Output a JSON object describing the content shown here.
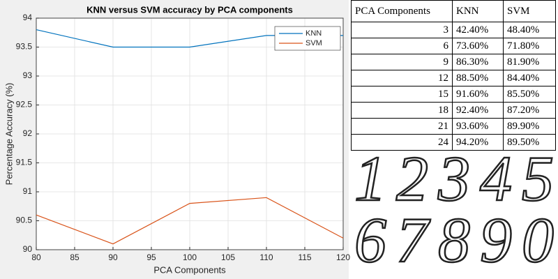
{
  "chart_data": {
    "type": "line",
    "title": "KNN versus SVM accuracy by PCA components",
    "x_label": "PCA Components",
    "y_label": "Percentage Accuracy (%)",
    "x": [
      80,
      90,
      100,
      110,
      120
    ],
    "series": [
      {
        "name": "KNN",
        "color": "#0072bd",
        "values": [
          93.8,
          93.5,
          93.5,
          93.7,
          93.7
        ]
      },
      {
        "name": "SVM",
        "color": "#d95319",
        "values": [
          90.6,
          90.1,
          90.8,
          90.9,
          90.2
        ]
      }
    ],
    "xlim": [
      80,
      120
    ],
    "xticks": [
      80,
      85,
      90,
      95,
      100,
      105,
      110,
      115,
      120
    ],
    "ylim": [
      90,
      94
    ],
    "yticks": [
      90,
      90.5,
      91,
      91.5,
      92,
      92.5,
      93,
      93.5,
      94
    ],
    "grid": true,
    "legend": "northeast"
  },
  "table": {
    "header": [
      "PCA Components",
      "KNN",
      "SVM"
    ],
    "rows": [
      [
        "3",
        "42.40%",
        "48.40%"
      ],
      [
        "6",
        "73.60%",
        "71.80%"
      ],
      [
        "9",
        "86.30%",
        "81.90%"
      ],
      [
        "12",
        "88.50%",
        "84.40%"
      ],
      [
        "15",
        "91.60%",
        "85.50%"
      ],
      [
        "18",
        "92.40%",
        "87.20%"
      ],
      [
        "21",
        "93.60%",
        "89.90%"
      ],
      [
        "24",
        "94.20%",
        "89.50%"
      ]
    ]
  },
  "digits": {
    "rows": [
      "12345",
      "67890"
    ]
  }
}
